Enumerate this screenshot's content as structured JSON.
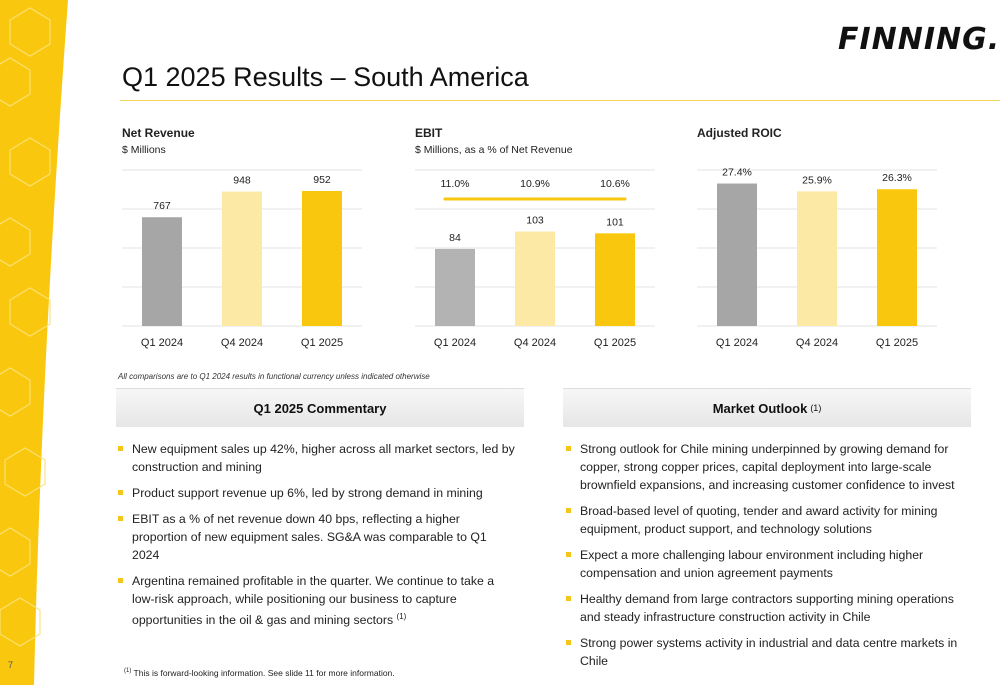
{
  "page": {
    "number": "7"
  },
  "logo": {
    "text": "FINNING."
  },
  "title": "Q1 2025 Results – South America",
  "charts": [
    {
      "title": "Net Revenue",
      "subtitle": "$ Millions",
      "chart_data": {
        "type": "bar",
        "categories": [
          "Q1 2024",
          "Q4 2024",
          "Q1 2025"
        ],
        "values": [
          767,
          948,
          952
        ],
        "labels": [
          "767",
          "948",
          "952"
        ],
        "ylim": [
          0,
          1100
        ],
        "grid": true,
        "colors": [
          "#a6a6a6",
          "#fde9a6",
          "#f9c80e"
        ]
      }
    },
    {
      "title": "EBIT",
      "subtitle": "$ Millions, as a % of Net Revenue",
      "chart_data": {
        "type": "bar",
        "categories": [
          "Q1 2024",
          "Q4 2024",
          "Q1 2025"
        ],
        "values": [
          84,
          103,
          101
        ],
        "labels": [
          "84",
          "103",
          "101"
        ],
        "ylim": [
          0,
          170
        ],
        "grid": true,
        "colors": [
          "#b3b3b3",
          "#fde9a6",
          "#f9c80e"
        ],
        "line": {
          "values": [
            11.0,
            10.9,
            10.6
          ],
          "labels": [
            "11.0%",
            "10.9%",
            "10.6%"
          ],
          "color": "#f9c80e"
        }
      }
    },
    {
      "title": "Adjusted ROIC",
      "subtitle": "",
      "chart_data": {
        "type": "bar",
        "categories": [
          "Q1 2024",
          "Q4 2024",
          "Q1 2025"
        ],
        "values": [
          27.4,
          25.9,
          26.3
        ],
        "labels": [
          "27.4%",
          "25.9%",
          "26.3%"
        ],
        "ylim": [
          0,
          30
        ],
        "grid": true,
        "colors": [
          "#a6a6a6",
          "#fde9a6",
          "#f9c80e"
        ]
      }
    }
  ],
  "comparison_note": "All comparisons are to Q1 2024 results in functional currency unless indicated otherwise",
  "commentary": {
    "heading": "Q1 2025 Commentary",
    "items": [
      "New equipment sales up 42%, higher across all market sectors, led by construction and mining",
      "Product support revenue up 6%, led by strong demand in mining",
      "EBIT as a % of net revenue down 40 bps, reflecting a higher proportion of new equipment sales. SG&A was comparable to Q1 2024",
      "Argentina remained profitable in the quarter.  We continue to take a low-risk approach, while positioning our business to capture opportunities in the oil & gas and mining sectors"
    ],
    "item4_ref": "(1)"
  },
  "outlook": {
    "heading": "Market Outlook",
    "heading_ref": "(1)",
    "items": [
      "Strong outlook for Chile mining underpinned by growing demand for copper, strong copper prices, capital deployment into large-scale brownfield expansions, and increasing customer confidence to invest",
      "Broad-based level of quoting, tender and award activity for mining equipment, product support, and technology solutions",
      "Expect a more challenging labour environment including higher compensation and union agreement payments",
      "Healthy demand from large contractors supporting mining operations and steady infrastructure construction activity in Chile",
      "Strong power systems activity in industrial and data centre markets in Chile"
    ]
  },
  "footnote": {
    "ref": "(1)",
    "text": " This is forward-looking information. See slide 11 for more information."
  }
}
